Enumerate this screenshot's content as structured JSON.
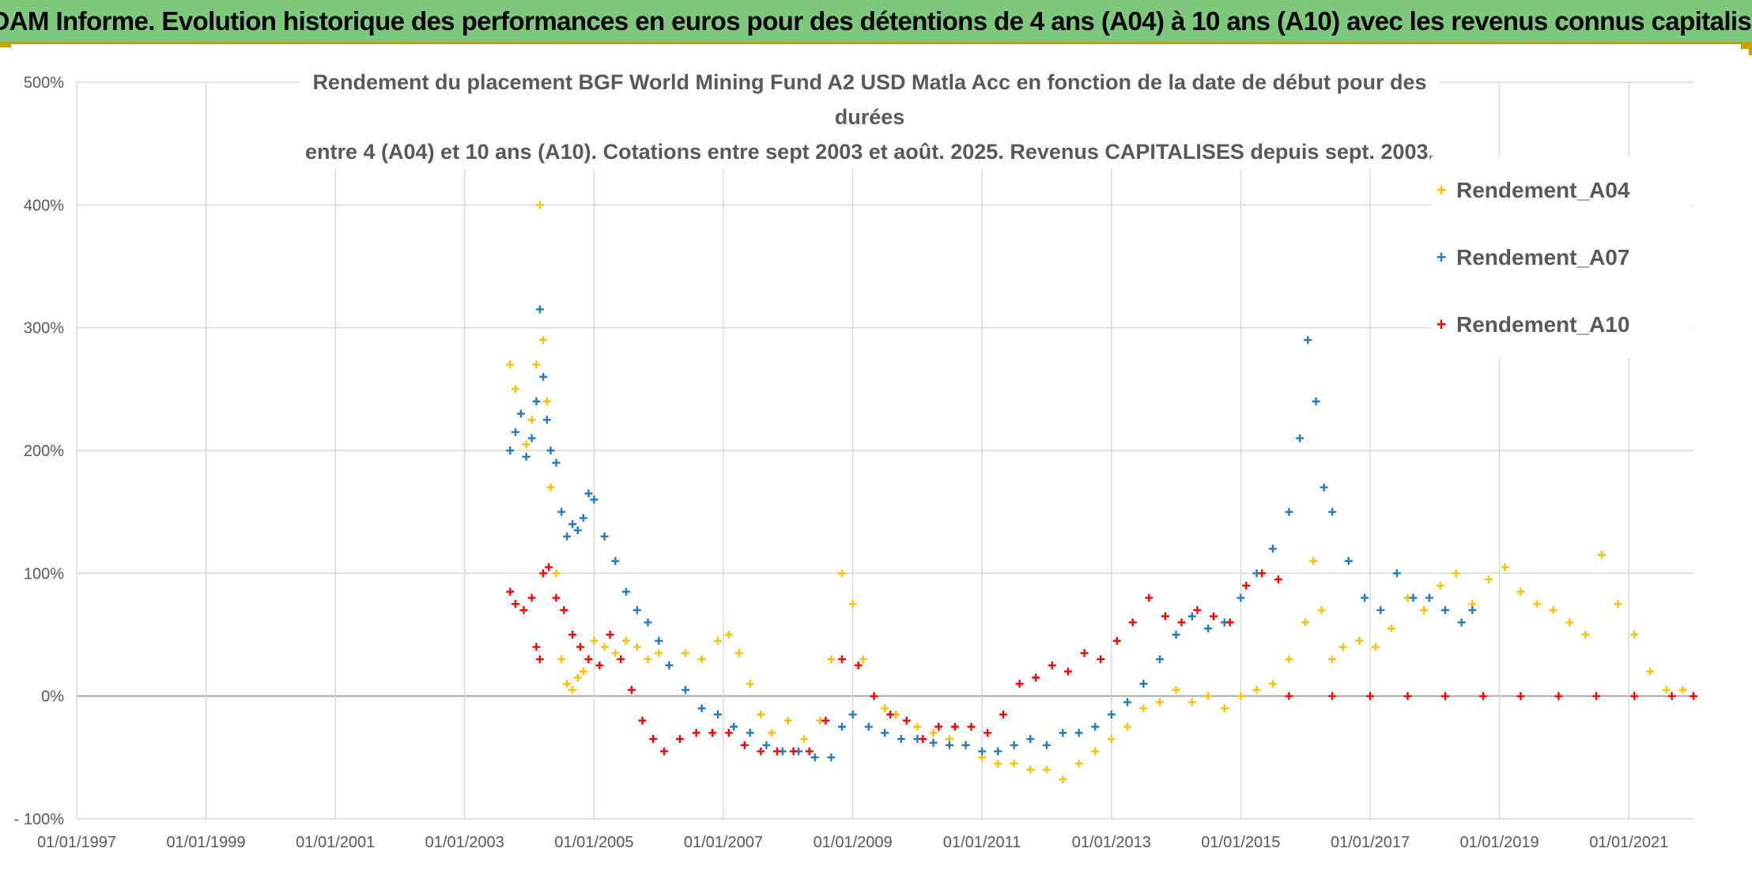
{
  "header": {
    "title": "ADAM Informe. Evolution historique des performances en euros pour des détentions de 4 ans (A04) à 10 ans (A10) avec les revenus connus capitalisés"
  },
  "chart_data": {
    "type": "scatter",
    "title_line1": "Rendement du placement BGF World Mining Fund A2 USD Matla Acc en fonction de la date de début pour des durées",
    "title_line2": "entre 4 (A04) et 10 ans (A10). Cotations entre sept 2003 et août. 2025. Revenus CAPITALISES depuis sept. 2003.",
    "xlabel": "",
    "ylabel": "",
    "xlim": [
      "1997-01-01",
      "2022-01-01"
    ],
    "ylim": [
      -100,
      500
    ],
    "grid": true,
    "legend_position": "top-right",
    "x_ticks": [
      "01/01/1997",
      "01/01/1999",
      "01/01/2001",
      "01/01/2003",
      "01/01/2005",
      "01/01/2007",
      "01/01/2009",
      "01/01/2011",
      "01/01/2013",
      "01/01/2015",
      "01/01/2017",
      "01/01/2019",
      "01/01/2021"
    ],
    "y_ticks": [
      "- 100%",
      "0%",
      "100%",
      "200%",
      "300%",
      "400%",
      "500%"
    ],
    "y_tick_values": [
      -100,
      0,
      100,
      200,
      300,
      400,
      500
    ],
    "series": [
      {
        "name": "Rendement_A04",
        "color": "#ffc000",
        "marker": "+",
        "points": [
          [
            "2003-09-15",
            270
          ],
          [
            "2003-10-15",
            250
          ],
          [
            "2003-11-15",
            230
          ],
          [
            "2003-12-15",
            205
          ],
          [
            "2004-01-15",
            225
          ],
          [
            "2004-02-10",
            270
          ],
          [
            "2004-03-01",
            400
          ],
          [
            "2004-03-20",
            290
          ],
          [
            "2004-04-10",
            240
          ],
          [
            "2004-05-01",
            170
          ],
          [
            "2004-06-01",
            100
          ],
          [
            "2004-07-01",
            30
          ],
          [
            "2004-08-01",
            10
          ],
          [
            "2004-09-01",
            5
          ],
          [
            "2004-10-01",
            15
          ],
          [
            "2004-11-01",
            20
          ],
          [
            "2004-12-01",
            30
          ],
          [
            "2005-01-01",
            45
          ],
          [
            "2005-03-01",
            40
          ],
          [
            "2005-05-01",
            35
          ],
          [
            "2005-07-01",
            45
          ],
          [
            "2005-09-01",
            40
          ],
          [
            "2005-11-01",
            30
          ],
          [
            "2006-01-01",
            35
          ],
          [
            "2006-03-01",
            25
          ],
          [
            "2006-06-01",
            35
          ],
          [
            "2006-09-01",
            30
          ],
          [
            "2006-12-01",
            45
          ],
          [
            "2007-02-01",
            50
          ],
          [
            "2007-04-01",
            35
          ],
          [
            "2007-06-01",
            10
          ],
          [
            "2007-08-01",
            -15
          ],
          [
            "2007-10-01",
            -30
          ],
          [
            "2008-01-01",
            -20
          ],
          [
            "2008-04-01",
            -35
          ],
          [
            "2008-07-01",
            -20
          ],
          [
            "2008-09-01",
            30
          ],
          [
            "2008-11-01",
            100
          ],
          [
            "2009-01-01",
            75
          ],
          [
            "2009-03-01",
            30
          ],
          [
            "2009-05-01",
            0
          ],
          [
            "2009-07-01",
            -10
          ],
          [
            "2009-09-01",
            -15
          ],
          [
            "2009-11-01",
            -20
          ],
          [
            "2010-01-01",
            -25
          ],
          [
            "2010-04-01",
            -30
          ],
          [
            "2010-07-01",
            -35
          ],
          [
            "2010-10-01",
            -40
          ],
          [
            "2011-01-01",
            -50
          ],
          [
            "2011-04-01",
            -55
          ],
          [
            "2011-07-01",
            -55
          ],
          [
            "2011-10-01",
            -60
          ],
          [
            "2012-01-01",
            -60
          ],
          [
            "2012-04-01",
            -68
          ],
          [
            "2012-07-01",
            -55
          ],
          [
            "2012-10-01",
            -45
          ],
          [
            "2013-01-01",
            -35
          ],
          [
            "2013-04-01",
            -25
          ],
          [
            "2013-07-01",
            -10
          ],
          [
            "2013-10-01",
            -5
          ],
          [
            "2014-01-01",
            5
          ],
          [
            "2014-04-01",
            -5
          ],
          [
            "2014-07-01",
            0
          ],
          [
            "2014-10-01",
            -10
          ],
          [
            "2015-01-01",
            0
          ],
          [
            "2015-04-01",
            5
          ],
          [
            "2015-07-01",
            10
          ],
          [
            "2015-10-01",
            30
          ],
          [
            "2016-01-01",
            60
          ],
          [
            "2016-02-15",
            110
          ],
          [
            "2016-04-01",
            70
          ],
          [
            "2016-06-01",
            30
          ],
          [
            "2016-08-01",
            40
          ],
          [
            "2016-11-01",
            45
          ],
          [
            "2017-02-01",
            40
          ],
          [
            "2017-05-01",
            55
          ],
          [
            "2017-08-01",
            80
          ],
          [
            "2017-11-01",
            70
          ],
          [
            "2018-02-01",
            90
          ],
          [
            "2018-05-01",
            100
          ],
          [
            "2018-08-01",
            75
          ],
          [
            "2018-11-01",
            95
          ],
          [
            "2019-02-01",
            105
          ],
          [
            "2019-05-01",
            85
          ],
          [
            "2019-08-01",
            75
          ],
          [
            "2019-11-01",
            70
          ],
          [
            "2020-02-01",
            60
          ],
          [
            "2020-05-01",
            50
          ],
          [
            "2020-08-01",
            115
          ],
          [
            "2020-11-01",
            75
          ],
          [
            "2021-02-01",
            50
          ],
          [
            "2021-05-01",
            20
          ],
          [
            "2021-08-01",
            5
          ],
          [
            "2021-11-01",
            5
          ]
        ]
      },
      {
        "name": "Rendement_A07",
        "color": "#1f7bc4",
        "marker": "+",
        "points": [
          [
            "2003-09-15",
            200
          ],
          [
            "2003-10-15",
            215
          ],
          [
            "2003-11-15",
            230
          ],
          [
            "2003-12-15",
            195
          ],
          [
            "2004-01-15",
            210
          ],
          [
            "2004-02-10",
            240
          ],
          [
            "2004-03-01",
            315
          ],
          [
            "2004-03-20",
            260
          ],
          [
            "2004-04-10",
            225
          ],
          [
            "2004-05-01",
            200
          ],
          [
            "2004-06-01",
            190
          ],
          [
            "2004-07-01",
            150
          ],
          [
            "2004-08-01",
            130
          ],
          [
            "2004-09-01",
            140
          ],
          [
            "2004-10-01",
            135
          ],
          [
            "2004-11-01",
            145
          ],
          [
            "2004-12-01",
            165
          ],
          [
            "2005-01-01",
            160
          ],
          [
            "2005-03-01",
            130
          ],
          [
            "2005-05-01",
            110
          ],
          [
            "2005-07-01",
            85
          ],
          [
            "2005-09-01",
            70
          ],
          [
            "2005-11-01",
            60
          ],
          [
            "2006-01-01",
            45
          ],
          [
            "2006-03-01",
            25
          ],
          [
            "2006-06-01",
            5
          ],
          [
            "2006-09-01",
            -10
          ],
          [
            "2006-12-01",
            -15
          ],
          [
            "2007-03-01",
            -25
          ],
          [
            "2007-06-01",
            -30
          ],
          [
            "2007-09-01",
            -40
          ],
          [
            "2007-12-01",
            -45
          ],
          [
            "2008-03-01",
            -45
          ],
          [
            "2008-06-01",
            -50
          ],
          [
            "2008-09-01",
            -50
          ],
          [
            "2008-11-01",
            -25
          ],
          [
            "2009-01-01",
            -15
          ],
          [
            "2009-04-01",
            -25
          ],
          [
            "2009-07-01",
            -30
          ],
          [
            "2009-10-01",
            -35
          ],
          [
            "2010-01-01",
            -35
          ],
          [
            "2010-04-01",
            -38
          ],
          [
            "2010-07-01",
            -40
          ],
          [
            "2010-10-01",
            -40
          ],
          [
            "2011-01-01",
            -45
          ],
          [
            "2011-04-01",
            -45
          ],
          [
            "2011-07-01",
            -40
          ],
          [
            "2011-10-01",
            -35
          ],
          [
            "2012-01-01",
            -40
          ],
          [
            "2012-04-01",
            -30
          ],
          [
            "2012-07-01",
            -30
          ],
          [
            "2012-10-01",
            -25
          ],
          [
            "2013-01-01",
            -15
          ],
          [
            "2013-04-01",
            -5
          ],
          [
            "2013-07-01",
            10
          ],
          [
            "2013-10-01",
            30
          ],
          [
            "2014-01-01",
            50
          ],
          [
            "2014-04-01",
            65
          ],
          [
            "2014-07-01",
            55
          ],
          [
            "2014-10-01",
            60
          ],
          [
            "2015-01-01",
            80
          ],
          [
            "2015-04-01",
            100
          ],
          [
            "2015-07-01",
            120
          ],
          [
            "2015-10-01",
            150
          ],
          [
            "2015-12-01",
            210
          ],
          [
            "2016-01-15",
            290
          ],
          [
            "2016-03-01",
            240
          ],
          [
            "2016-04-15",
            170
          ],
          [
            "2016-06-01",
            150
          ],
          [
            "2016-09-01",
            110
          ],
          [
            "2016-12-01",
            80
          ],
          [
            "2017-03-01",
            70
          ],
          [
            "2017-06-01",
            100
          ],
          [
            "2017-09-01",
            80
          ],
          [
            "2017-12-01",
            80
          ],
          [
            "2018-03-01",
            70
          ],
          [
            "2018-06-01",
            60
          ],
          [
            "2018-08-01",
            70
          ]
        ]
      },
      {
        "name": "Rendement_A10",
        "color": "#ff0000",
        "marker": "+",
        "points": [
          [
            "2003-09-15",
            85
          ],
          [
            "2003-10-15",
            75
          ],
          [
            "2003-12-01",
            70
          ],
          [
            "2004-01-15",
            80
          ],
          [
            "2004-02-10",
            40
          ],
          [
            "2004-03-01",
            30
          ],
          [
            "2004-03-20",
            100
          ],
          [
            "2004-04-20",
            105
          ],
          [
            "2004-06-01",
            80
          ],
          [
            "2004-07-15",
            70
          ],
          [
            "2004-09-01",
            50
          ],
          [
            "2004-10-15",
            40
          ],
          [
            "2004-12-01",
            30
          ],
          [
            "2005-02-01",
            25
          ],
          [
            "2005-04-01",
            50
          ],
          [
            "2005-06-01",
            30
          ],
          [
            "2005-08-01",
            5
          ],
          [
            "2005-10-01",
            -20
          ],
          [
            "2005-12-01",
            -35
          ],
          [
            "2006-02-01",
            -45
          ],
          [
            "2006-05-01",
            -35
          ],
          [
            "2006-08-01",
            -30
          ],
          [
            "2006-11-01",
            -30
          ],
          [
            "2007-02-01",
            -30
          ],
          [
            "2007-05-01",
            -40
          ],
          [
            "2007-08-01",
            -45
          ],
          [
            "2007-11-01",
            -45
          ],
          [
            "2008-02-01",
            -45
          ],
          [
            "2008-05-01",
            -45
          ],
          [
            "2008-08-01",
            -20
          ],
          [
            "2008-11-01",
            30
          ],
          [
            "2009-02-01",
            25
          ],
          [
            "2009-05-01",
            0
          ],
          [
            "2009-08-01",
            -15
          ],
          [
            "2009-11-01",
            -20
          ],
          [
            "2010-02-01",
            -35
          ],
          [
            "2010-05-01",
            -25
          ],
          [
            "2010-08-01",
            -25
          ],
          [
            "2010-11-01",
            -25
          ],
          [
            "2011-02-01",
            -30
          ],
          [
            "2011-05-01",
            -15
          ],
          [
            "2011-08-01",
            10
          ],
          [
            "2011-11-01",
            15
          ],
          [
            "2012-02-01",
            25
          ],
          [
            "2012-05-01",
            20
          ],
          [
            "2012-08-01",
            35
          ],
          [
            "2012-11-01",
            30
          ],
          [
            "2013-02-01",
            45
          ],
          [
            "2013-05-01",
            60
          ],
          [
            "2013-08-01",
            80
          ],
          [
            "2013-11-01",
            65
          ],
          [
            "2014-02-01",
            60
          ],
          [
            "2014-05-01",
            70
          ],
          [
            "2014-08-01",
            65
          ],
          [
            "2014-11-01",
            60
          ],
          [
            "2015-02-01",
            90
          ],
          [
            "2015-05-01",
            100
          ],
          [
            "2015-08-01",
            95
          ],
          [
            "2015-10-01",
            0
          ],
          [
            "2016-06-01",
            0
          ],
          [
            "2017-01-01",
            0
          ],
          [
            "2017-08-01",
            0
          ],
          [
            "2018-03-01",
            0
          ],
          [
            "2018-10-01",
            0
          ],
          [
            "2019-05-01",
            0
          ],
          [
            "2019-12-01",
            0
          ],
          [
            "2020-07-01",
            0
          ],
          [
            "2021-02-01",
            0
          ],
          [
            "2021-09-01",
            0
          ],
          [
            "2022-01-01",
            0
          ]
        ]
      }
    ]
  }
}
